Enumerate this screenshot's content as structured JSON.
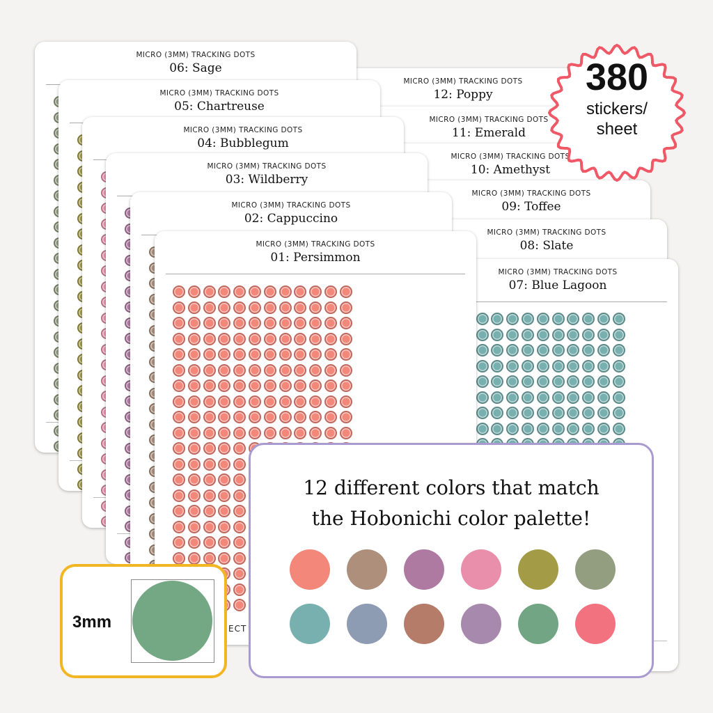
{
  "sheet_subtitle": "MICRO (3MM) TRACKING DOTS",
  "left_sheets": [
    {
      "title": "06: Sage",
      "color": "#939d80"
    },
    {
      "title": "05: Chartreuse",
      "color": "#a39b45"
    },
    {
      "title": "04: Bubblegum",
      "color": "#e98fab"
    },
    {
      "title": "03: Wildberry",
      "color": "#af7aa2"
    },
    {
      "title": "02: Cappuccino",
      "color": "#ad8f7c"
    },
    {
      "title": "01: Persimmon",
      "color": "#f2877a"
    }
  ],
  "right_sheets": [
    {
      "title": "12: Poppy",
      "color": "#f27280"
    },
    {
      "title": "11: Emerald",
      "color": "#72a583"
    },
    {
      "title": "10: Amethyst",
      "color": "#a789ad"
    },
    {
      "title": "09: Toffee",
      "color": "#b57c6a"
    },
    {
      "title": "08: Slate",
      "color": "#8d9bb3"
    },
    {
      "title": "07: Blue Lagoon",
      "color": "#78b0b0"
    }
  ],
  "partial_footer_text": "ECT",
  "callout": {
    "line1": "12 different colors that match",
    "line2": "the Hobonichi color palette!",
    "swatches": [
      "#f2877a",
      "#ad8f7c",
      "#af7aa2",
      "#e98fab",
      "#a39b45",
      "#939d80",
      "#78b0b0",
      "#8d9bb3",
      "#b57c6a",
      "#a789ad",
      "#72a583",
      "#f27280"
    ]
  },
  "size_box": {
    "label": "3mm",
    "dot_color": "#74a884"
  },
  "badge": {
    "count": "380",
    "line1": "stickers/",
    "line2": "sheet"
  }
}
